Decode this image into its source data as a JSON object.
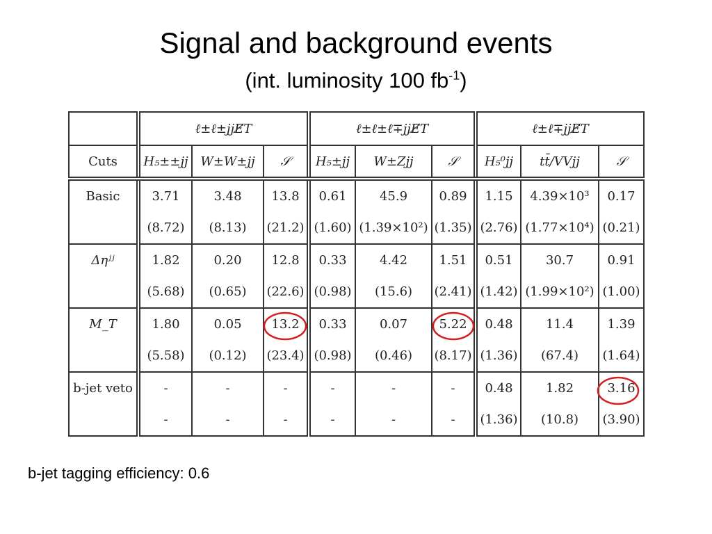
{
  "header": {
    "title": "Signal and background events",
    "subtitle": "(int. luminosity 100 fb",
    "subtitle_sup": "-1",
    "subtitle_end": ")"
  },
  "table": {
    "groups": [
      "ℓ±ℓ±jjE̸T",
      "ℓ±ℓ±ℓ∓jjE̸T",
      "ℓ±ℓ∓jjE̸T"
    ],
    "columns": [
      "Cuts",
      "H₅±±jj",
      "W±W±jj",
      "𝒮",
      "H₅±jj",
      "W±Zjj",
      "𝒮",
      "H₅⁰jj",
      "tt̄/VVjj",
      "𝒮"
    ],
    "rows": [
      {
        "cut": "Basic",
        "values": [
          "3.71",
          "3.48",
          "13.8",
          "0.61",
          "45.9",
          "0.89",
          "1.15",
          "4.39×10³",
          "0.17"
        ],
        "errors": [
          "(8.72)",
          "(8.13)",
          "(21.2)",
          "(1.60)",
          "(1.39×10²)",
          "(1.35)",
          "(2.76)",
          "(1.77×10⁴)",
          "(0.21)"
        ]
      },
      {
        "cut": "Δηʲʲ",
        "values": [
          "1.82",
          "0.20",
          "12.8",
          "0.33",
          "4.42",
          "1.51",
          "0.51",
          "30.7",
          "0.91"
        ],
        "errors": [
          "(5.68)",
          "(0.65)",
          "(22.6)",
          "(0.98)",
          "(15.6)",
          "(2.41)",
          "(1.42)",
          "(1.99×10²)",
          "(1.00)"
        ]
      },
      {
        "cut": "M_T",
        "values": [
          "1.80",
          "0.05",
          "13.2",
          "0.33",
          "0.07",
          "5.22",
          "0.48",
          "11.4",
          "1.39"
        ],
        "errors": [
          "(5.58)",
          "(0.12)",
          "(23.4)",
          "(0.98)",
          "(0.46)",
          "(8.17)",
          "(1.36)",
          "(67.4)",
          "(1.64)"
        ]
      },
      {
        "cut": "b-jet veto",
        "values": [
          "-",
          "-",
          "-",
          "-",
          "-",
          "-",
          "0.48",
          "1.82",
          "3.16"
        ],
        "errors": [
          "-",
          "-",
          "-",
          "-",
          "-",
          "-",
          "(1.36)",
          "(10.8)",
          "(3.90)"
        ]
      }
    ]
  },
  "footer": "b-jet tagging efficiency: 0.6"
}
